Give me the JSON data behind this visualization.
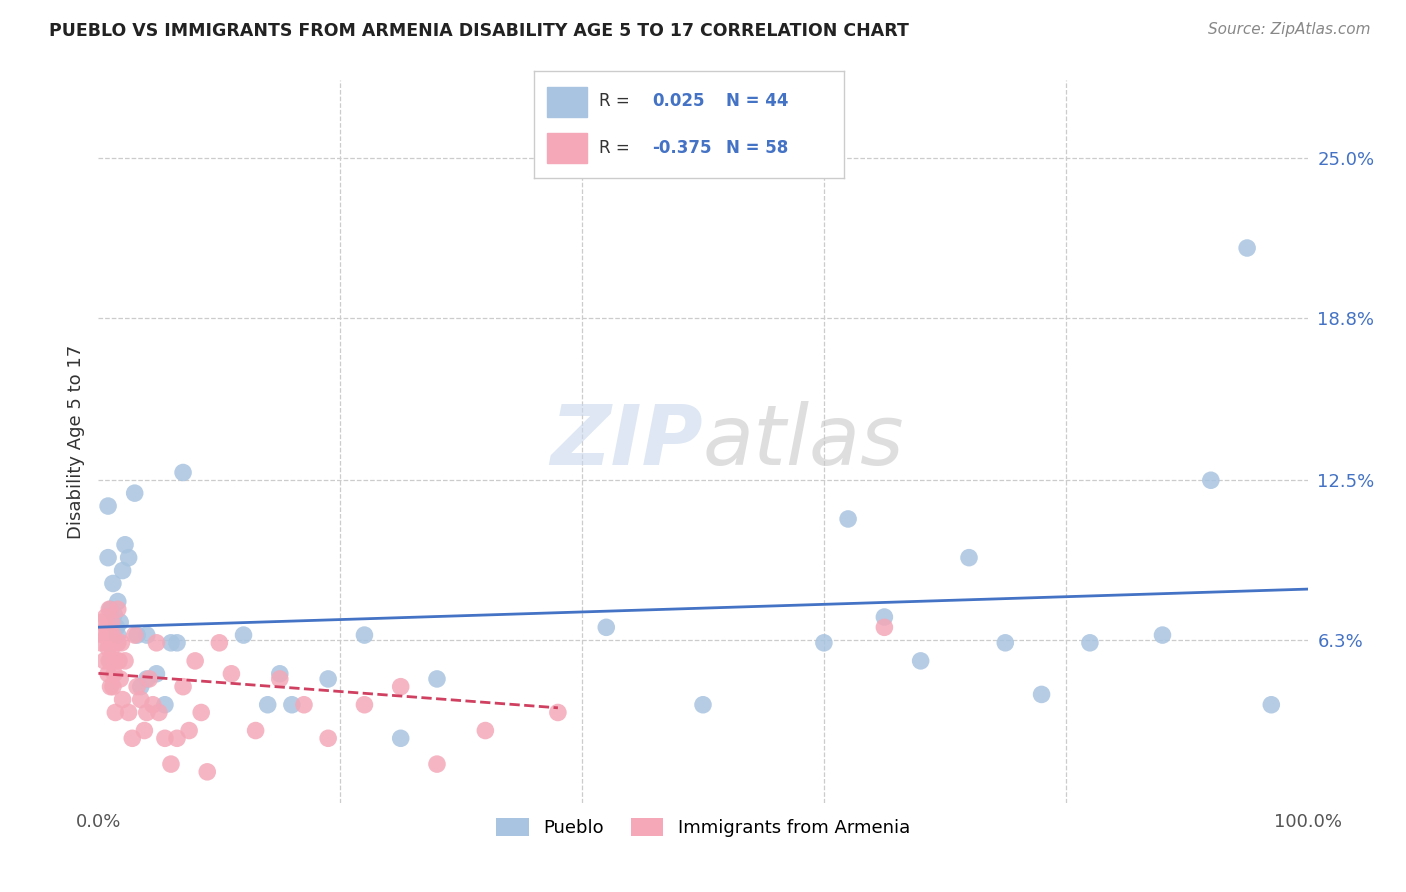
{
  "title": "PUEBLO VS IMMIGRANTS FROM ARMENIA DISABILITY AGE 5 TO 17 CORRELATION CHART",
  "source": "Source: ZipAtlas.com",
  "ylabel": "Disability Age 5 to 17",
  "xlim": [
    0,
    1.0
  ],
  "ylim": [
    0,
    0.28
  ],
  "xticklabels": [
    "0.0%",
    "",
    "",
    "",
    "",
    "100.0%"
  ],
  "ytick_positions": [
    0.063,
    0.125,
    0.188,
    0.25
  ],
  "yticklabels": [
    "6.3%",
    "12.5%",
    "18.8%",
    "25.0%"
  ],
  "legend_labels": [
    "Pueblo",
    "Immigrants from Armenia"
  ],
  "pueblo_color": "#a8c4e0",
  "armenia_color": "#f4a8b8",
  "pueblo_line_color": "#4472c4",
  "armenia_line_color": "#d04060",
  "pueblo_R": 0.025,
  "pueblo_N": 44,
  "armenia_R": -0.375,
  "armenia_N": 58,
  "watermark_zip": "ZIP",
  "watermark_atlas": "atlas",
  "background_color": "#ffffff",
  "grid_color": "#cccccc",
  "pueblo_x": [
    0.008,
    0.008,
    0.01,
    0.012,
    0.013,
    0.015,
    0.016,
    0.016,
    0.018,
    0.02,
    0.022,
    0.025,
    0.03,
    0.032,
    0.035,
    0.04,
    0.04,
    0.048,
    0.055,
    0.06,
    0.065,
    0.07,
    0.12,
    0.14,
    0.15,
    0.16,
    0.19,
    0.22,
    0.25,
    0.28,
    0.42,
    0.5,
    0.6,
    0.62,
    0.65,
    0.68,
    0.72,
    0.75,
    0.78,
    0.82,
    0.88,
    0.92,
    0.95,
    0.97
  ],
  "pueblo_y": [
    0.115,
    0.095,
    0.075,
    0.085,
    0.073,
    0.068,
    0.065,
    0.078,
    0.07,
    0.09,
    0.1,
    0.095,
    0.12,
    0.065,
    0.045,
    0.048,
    0.065,
    0.05,
    0.038,
    0.062,
    0.062,
    0.128,
    0.065,
    0.038,
    0.05,
    0.038,
    0.048,
    0.065,
    0.025,
    0.048,
    0.068,
    0.038,
    0.062,
    0.11,
    0.072,
    0.055,
    0.095,
    0.062,
    0.042,
    0.062,
    0.065,
    0.125,
    0.215,
    0.038
  ],
  "armenia_x": [
    0.002,
    0.003,
    0.004,
    0.005,
    0.006,
    0.007,
    0.007,
    0.008,
    0.008,
    0.009,
    0.009,
    0.01,
    0.01,
    0.011,
    0.011,
    0.012,
    0.012,
    0.013,
    0.014,
    0.015,
    0.016,
    0.016,
    0.017,
    0.018,
    0.019,
    0.02,
    0.022,
    0.025,
    0.028,
    0.03,
    0.032,
    0.035,
    0.038,
    0.04,
    0.042,
    0.045,
    0.048,
    0.05,
    0.055,
    0.06,
    0.065,
    0.07,
    0.075,
    0.08,
    0.085,
    0.09,
    0.1,
    0.11,
    0.13,
    0.15,
    0.17,
    0.19,
    0.22,
    0.25,
    0.28,
    0.32,
    0.38,
    0.65
  ],
  "armenia_y": [
    0.062,
    0.07,
    0.065,
    0.055,
    0.072,
    0.065,
    0.068,
    0.05,
    0.06,
    0.075,
    0.055,
    0.065,
    0.045,
    0.06,
    0.07,
    0.065,
    0.045,
    0.05,
    0.035,
    0.055,
    0.062,
    0.075,
    0.055,
    0.048,
    0.062,
    0.04,
    0.055,
    0.035,
    0.025,
    0.065,
    0.045,
    0.04,
    0.028,
    0.035,
    0.048,
    0.038,
    0.062,
    0.035,
    0.025,
    0.015,
    0.025,
    0.045,
    0.028,
    0.055,
    0.035,
    0.012,
    0.062,
    0.05,
    0.028,
    0.048,
    0.038,
    0.025,
    0.038,
    0.045,
    0.015,
    0.028,
    0.035,
    0.068
  ]
}
